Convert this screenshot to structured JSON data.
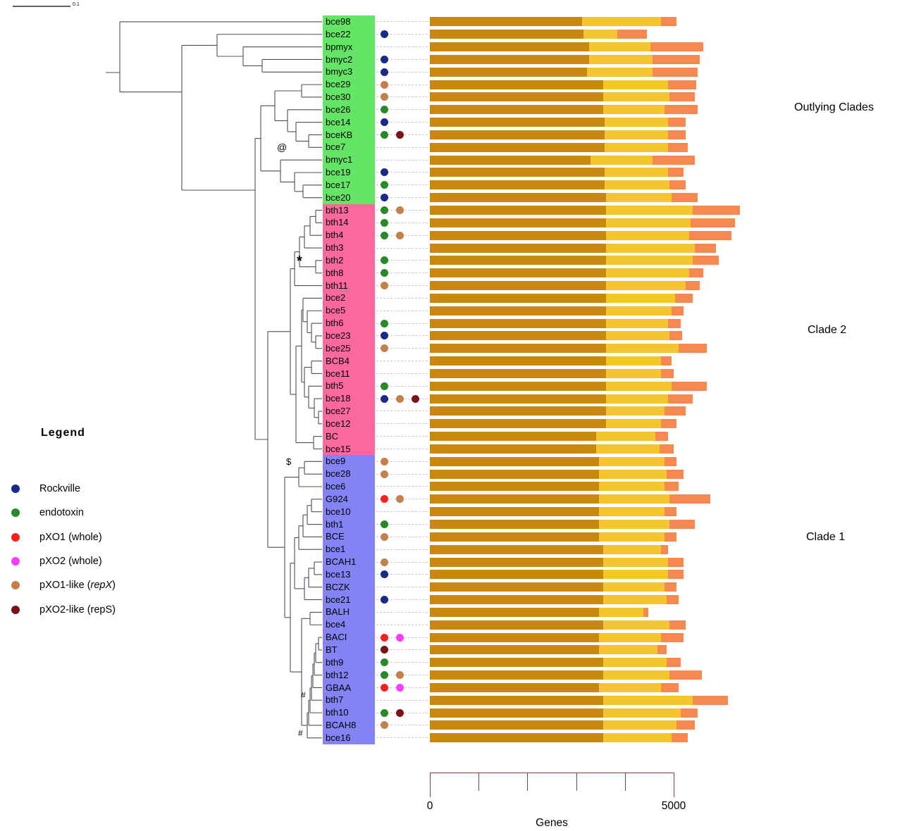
{
  "figure": {
    "scale_bar": {
      "label": "0.1"
    },
    "clade_labels": [
      {
        "id": "outlying",
        "text": "Outlying Clades"
      },
      {
        "id": "clade2",
        "text": "Clade 2"
      },
      {
        "id": "clade1",
        "text": "Clade 1"
      }
    ],
    "clade_colors": {
      "outlying": "#65e565",
      "clade2": "#fa699e",
      "clade1": "#8383f3"
    },
    "legend": {
      "title": "Legend",
      "items": [
        {
          "key": "rockville",
          "label": "Rockville",
          "color": "#1b2a8a"
        },
        {
          "key": "endotoxin",
          "label": "endotoxin",
          "color": "#278a27"
        },
        {
          "key": "pxo1",
          "label": "pXO1 (whole)",
          "color": "#fb2020"
        },
        {
          "key": "pxo2",
          "label": "pXO2 (whole)",
          "color": "#fd3bfd"
        },
        {
          "key": "pxo1_like",
          "label": "pXO1-like (repX)",
          "italic_segment": "repX",
          "color": "#c57f4b"
        },
        {
          "key": "pxo2_like",
          "label": "pXO2-like (repS)",
          "color": "#7a1216"
        }
      ]
    },
    "annotations": [
      {
        "symbol": "@",
        "near": "bce7"
      },
      {
        "symbol": "*",
        "near": "bth2"
      },
      {
        "symbol": "$",
        "near": "bce9"
      },
      {
        "symbol": "#",
        "near": "bth7"
      },
      {
        "symbol": "#",
        "near": "bce16"
      }
    ]
  },
  "chart_data": {
    "type": "bar",
    "orientation": "horizontal",
    "stacked": true,
    "title": "",
    "xlabel": "Genes",
    "xlim": [
      0,
      6500
    ],
    "x_ticks": [
      0,
      1000,
      2000,
      3000,
      4000,
      5000
    ],
    "x_axis_labels": [
      {
        "value": 0,
        "text": "0"
      },
      {
        "value": 5000,
        "text": "5000"
      }
    ],
    "axis_color": "#8e3b35",
    "segment_colors": [
      "#c8870d",
      "#f5c52e",
      "#f78950"
    ],
    "rows": [
      {
        "name": "bce98",
        "clade": "outlying",
        "markers": [],
        "values": [
          3120,
          1620,
          320
        ]
      },
      {
        "name": "bce22",
        "clade": "outlying",
        "markers": [
          "rockville"
        ],
        "values": [
          3150,
          695,
          605
        ]
      },
      {
        "name": "bpmyx",
        "clade": "outlying",
        "markers": [],
        "values": [
          3265,
          1255,
          1085
        ]
      },
      {
        "name": "bmyc2",
        "clade": "outlying",
        "markers": [
          "rockville"
        ],
        "values": [
          3265,
          1300,
          970
        ]
      },
      {
        "name": "bmyc3",
        "clade": "outlying",
        "markers": [
          "rockville"
        ],
        "values": [
          3220,
          1345,
          925
        ]
      },
      {
        "name": "bce29",
        "clade": "outlying",
        "markers": [
          "pxo1_like"
        ],
        "values": [
          3555,
          1330,
          580
        ]
      },
      {
        "name": "bce30",
        "clade": "outlying",
        "markers": [
          "pxo1_like"
        ],
        "values": [
          3555,
          1360,
          520
        ]
      },
      {
        "name": "bce26",
        "clade": "outlying",
        "markers": [
          "endotoxin"
        ],
        "values": [
          3555,
          1255,
          680
        ]
      },
      {
        "name": "bce14",
        "clade": "outlying",
        "markers": [
          "rockville"
        ],
        "values": [
          3585,
          1300,
          360
        ]
      },
      {
        "name": "bceKB",
        "clade": "outlying",
        "markers": [
          "endotoxin",
          "pxo2_like"
        ],
        "values": [
          3585,
          1300,
          360
        ]
      },
      {
        "name": "bce7",
        "clade": "outlying",
        "markers": [],
        "values": [
          3585,
          1300,
          405
        ]
      },
      {
        "name": "bmyc1",
        "clade": "outlying",
        "markers": [],
        "values": [
          3295,
          1270,
          865
        ]
      },
      {
        "name": "bce19",
        "clade": "outlying",
        "markers": [
          "rockville"
        ],
        "values": [
          3585,
          1300,
          320
        ]
      },
      {
        "name": "bce17",
        "clade": "outlying",
        "markers": [
          "endotoxin"
        ],
        "values": [
          3585,
          1330,
          335
        ]
      },
      {
        "name": "bce20",
        "clade": "outlying",
        "markers": [
          "rockville"
        ],
        "values": [
          3615,
          1345,
          535
        ]
      },
      {
        "name": "bth13",
        "clade": "clade2",
        "markers": [
          "endotoxin",
          "pxo1_like"
        ],
        "values": [
          3615,
          1775,
          970
        ]
      },
      {
        "name": "bth14",
        "clade": "clade2",
        "markers": [
          "endotoxin"
        ],
        "values": [
          3615,
          1735,
          910
        ]
      },
      {
        "name": "bth4",
        "clade": "clade2",
        "markers": [
          "endotoxin",
          "pxo1_like"
        ],
        "values": [
          3615,
          1705,
          870
        ]
      },
      {
        "name": "bth3",
        "clade": "clade2",
        "markers": [],
        "values": [
          3615,
          1820,
          435
        ]
      },
      {
        "name": "bth2",
        "clade": "clade2",
        "markers": [
          "endotoxin"
        ],
        "values": [
          3615,
          1775,
          535
        ]
      },
      {
        "name": "bth8",
        "clade": "clade2",
        "markers": [
          "endotoxin"
        ],
        "values": [
          3615,
          1705,
          290
        ]
      },
      {
        "name": "bth11",
        "clade": "clade2",
        "markers": [
          "pxo1_like"
        ],
        "values": [
          3615,
          1635,
          290
        ]
      },
      {
        "name": "bce2",
        "clade": "clade2",
        "markers": [],
        "values": [
          3615,
          1415,
          360
        ]
      },
      {
        "name": "bce5",
        "clade": "clade2",
        "markers": [],
        "values": [
          3615,
          1345,
          245
        ]
      },
      {
        "name": "bth6",
        "clade": "clade2",
        "markers": [
          "endotoxin"
        ],
        "values": [
          3615,
          1270,
          260
        ]
      },
      {
        "name": "bce23",
        "clade": "clade2",
        "markers": [
          "rockville"
        ],
        "values": [
          3615,
          1300,
          260
        ]
      },
      {
        "name": "bce25",
        "clade": "clade2",
        "markers": [
          "pxo1_like"
        ],
        "values": [
          3615,
          1490,
          580
        ]
      },
      {
        "name": "BCB4",
        "clade": "clade2",
        "markers": [],
        "values": [
          3615,
          1125,
          215
        ]
      },
      {
        "name": "bce11",
        "clade": "clade2",
        "markers": [],
        "values": [
          3615,
          1125,
          260
        ]
      },
      {
        "name": "bth5",
        "clade": "clade2",
        "markers": [
          "endotoxin"
        ],
        "values": [
          3615,
          1345,
          725
        ]
      },
      {
        "name": "bce18",
        "clade": "clade2",
        "markers": [
          "rockville",
          "pxo1_like",
          "pxo2_like"
        ],
        "values": [
          3615,
          1270,
          505
        ]
      },
      {
        "name": "bce27",
        "clade": "clade2",
        "markers": [],
        "values": [
          3615,
          1200,
          435
        ]
      },
      {
        "name": "bce12",
        "clade": "clade2",
        "markers": [],
        "values": [
          3615,
          1125,
          320
        ]
      },
      {
        "name": "BC",
        "clade": "clade2",
        "markers": [],
        "values": [
          3410,
          1215,
          260
        ]
      },
      {
        "name": "bce15",
        "clade": "clade2",
        "markers": [],
        "values": [
          3410,
          1300,
          290
        ]
      },
      {
        "name": "bce9",
        "clade": "clade1",
        "markers": [
          "pxo1_like"
        ],
        "values": [
          3470,
          1345,
          245
        ]
      },
      {
        "name": "bce28",
        "clade": "clade1",
        "markers": [
          "pxo1_like"
        ],
        "values": [
          3470,
          1385,
          345
        ]
      },
      {
        "name": "bce6",
        "clade": "clade1",
        "markers": [],
        "values": [
          3470,
          1345,
          290
        ]
      },
      {
        "name": "G924",
        "clade": "clade1",
        "markers": [
          "pxo1",
          "pxo1_like"
        ],
        "values": [
          3470,
          1445,
          840
        ]
      },
      {
        "name": "bce10",
        "clade": "clade1",
        "markers": [],
        "values": [
          3470,
          1345,
          245
        ]
      },
      {
        "name": "bth1",
        "clade": "clade1",
        "markers": [
          "endotoxin"
        ],
        "values": [
          3470,
          1445,
          520
        ]
      },
      {
        "name": "BCE",
        "clade": "clade1",
        "markers": [
          "pxo1_like"
        ],
        "values": [
          3470,
          1345,
          245
        ]
      },
      {
        "name": "bce1",
        "clade": "clade1",
        "markers": [],
        "values": [
          3555,
          1185,
          145
        ]
      },
      {
        "name": "BCAH1",
        "clade": "clade1",
        "markers": [
          "pxo1_like"
        ],
        "values": [
          3555,
          1330,
          320
        ]
      },
      {
        "name": "bce13",
        "clade": "clade1",
        "markers": [
          "rockville"
        ],
        "values": [
          3555,
          1330,
          320
        ]
      },
      {
        "name": "BCZK",
        "clade": "clade1",
        "markers": [],
        "values": [
          3555,
          1255,
          245
        ]
      },
      {
        "name": "bce21",
        "clade": "clade1",
        "markers": [
          "rockville"
        ],
        "values": [
          3555,
          1300,
          245
        ]
      },
      {
        "name": "BALH",
        "clade": "clade1",
        "markers": [],
        "values": [
          3470,
          910,
          100
        ]
      },
      {
        "name": "bce4",
        "clade": "clade1",
        "markers": [],
        "values": [
          3555,
          1360,
          335
        ]
      },
      {
        "name": "BACI",
        "clade": "clade1",
        "markers": [
          "pxo1",
          "pxo2"
        ],
        "values": [
          3470,
          1270,
          465
        ]
      },
      {
        "name": "BT",
        "clade": "clade1",
        "markers": [
          "pxo2_like"
        ],
        "values": [
          3470,
          1200,
          190
        ]
      },
      {
        "name": "bth9",
        "clade": "clade1",
        "markers": [
          "endotoxin"
        ],
        "values": [
          3555,
          1300,
          290
        ]
      },
      {
        "name": "bth12",
        "clade": "clade1",
        "markers": [
          "endotoxin",
          "pxo1_like"
        ],
        "values": [
          3555,
          1360,
          665
        ]
      },
      {
        "name": "GBAA",
        "clade": "clade1",
        "markers": [
          "pxo1",
          "pxo2"
        ],
        "values": [
          3470,
          1270,
          360
        ]
      },
      {
        "name": "bth7",
        "clade": "clade1",
        "markers": [],
        "values": [
          3555,
          1835,
          725
        ]
      },
      {
        "name": "bth10",
        "clade": "clade1",
        "markers": [
          "endotoxin",
          "pxo2_like"
        ],
        "values": [
          3555,
          1590,
          345
        ]
      },
      {
        "name": "BCAH8",
        "clade": "clade1",
        "markers": [
          "pxo1_like"
        ],
        "values": [
          3555,
          1500,
          375
        ]
      },
      {
        "name": "bce16",
        "clade": "clade1",
        "markers": [],
        "values": [
          3555,
          1400,
          335
        ]
      }
    ]
  }
}
